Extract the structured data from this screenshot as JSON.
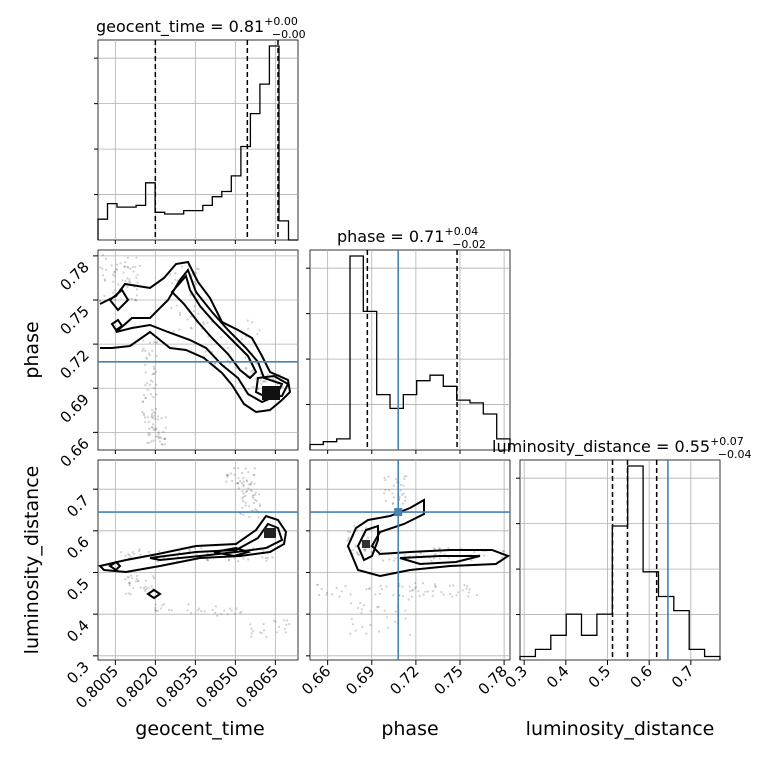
{
  "chart_data": {
    "type": "corner",
    "parameters": [
      "geocent_time",
      "phase",
      "luminosity_distance"
    ],
    "titles": [
      {
        "param": "geocent_time",
        "text": "geocent_time = 0.81",
        "plus": "+0.00",
        "minus": "−0.00"
      },
      {
        "param": "phase",
        "text": "phase = 0.71",
        "plus": "+0.04",
        "minus": "−0.02"
      },
      {
        "param": "luminosity_distance",
        "text": "luminosity_distance = 0.55",
        "plus": "+0.07",
        "minus": "−0.04"
      }
    ],
    "axes": {
      "geocent_time": {
        "range": [
          0.79985,
          0.80735
        ],
        "ticks": [
          0.8005,
          0.802,
          0.8035,
          0.805,
          0.8065
        ],
        "tick_labels": [
          "0.8005",
          "0.8020",
          "0.8035",
          "0.8050",
          "0.8065"
        ],
        "label": "geocent_time"
      },
      "phase": {
        "range": [
          0.648,
          0.784
        ],
        "ticks": [
          0.66,
          0.69,
          0.72,
          0.75,
          0.78
        ],
        "tick_labels": [
          "0.66",
          "0.69",
          "0.72",
          "0.75",
          "0.78"
        ],
        "label": "phase"
      },
      "luminosity_distance": {
        "range": [
          0.29,
          0.77
        ],
        "ticks": [
          0.3,
          0.4,
          0.5,
          0.6,
          0.7
        ],
        "tick_labels": [
          "0.3",
          "0.4",
          "0.5",
          "0.6",
          "0.7"
        ],
        "label": "luminosity_distance"
      }
    },
    "truths": {
      "phase": 0.708,
      "luminosity_distance": 0.645
    },
    "quantiles": {
      "geocent_time": [
        0.802,
        0.80545,
        0.8066
      ],
      "phase": [
        0.687,
        0.708,
        0.748
      ],
      "luminosity_distance": [
        0.512,
        0.548,
        0.618
      ]
    },
    "histograms": {
      "geocent_time": {
        "edges_range": [
          0.79985,
          0.80735
        ],
        "counts": [
          12,
          21,
          19,
          19,
          20,
          33,
          16,
          15,
          15,
          17,
          17,
          20,
          25,
          28,
          37,
          54,
          73,
          90,
          112,
          11,
          0
        ]
      },
      "phase": {
        "edges_range": [
          0.648,
          0.784
        ],
        "counts": [
          2,
          3,
          4,
          70,
          50,
          20,
          15,
          20,
          25,
          27,
          23,
          18,
          17,
          13,
          4
        ]
      },
      "luminosity_distance": {
        "edges_range": [
          0.29,
          0.77
        ],
        "counts": [
          1,
          3,
          7,
          13,
          7,
          13,
          38,
          55,
          25,
          18,
          14,
          3,
          1
        ]
      }
    },
    "grid": true
  }
}
